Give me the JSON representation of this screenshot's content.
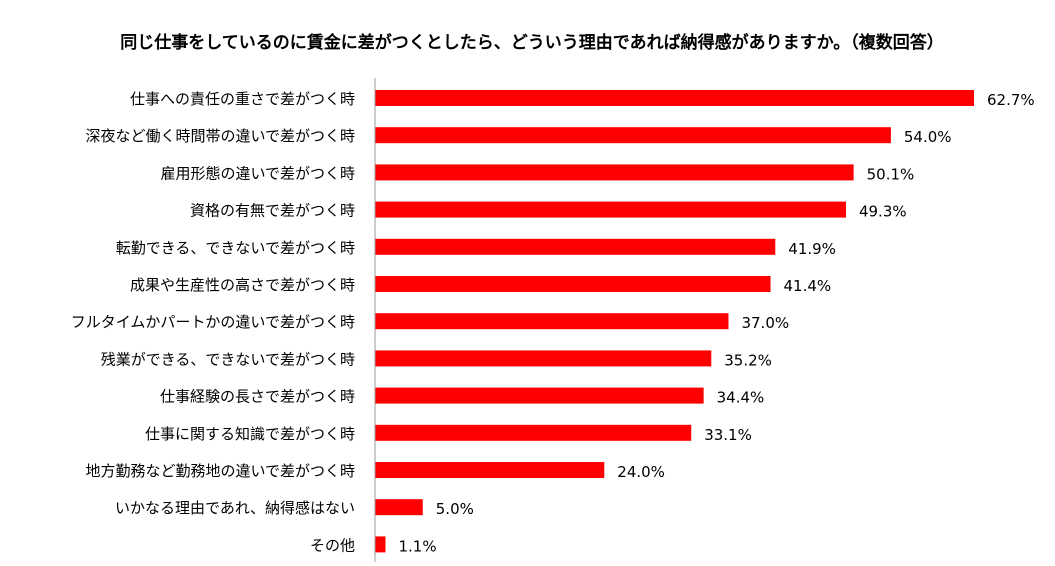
{
  "chart_data": {
    "type": "bar",
    "orientation": "horizontal",
    "title": "同じ仕事をしているのに賃金に差がつくとしたら、どういう理由であれば納得感がありますか。（複数回答）",
    "categories": [
      "仕事への責任の重さで差がつく時",
      "深夜など働く時間帯の違いで差がつく時",
      "雇用形態の違いで差がつく時",
      "資格の有無で差がつく時",
      "転勤できる、できないで差がつく時",
      "成果や生産性の高さで差がつく時",
      "フルタイムかパートかの違いで差がつく時",
      "残業ができる、できないで差がつく時",
      "仕事経験の長さで差がつく時",
      "仕事に関する知識で差がつく時",
      "地方勤務など勤務地の違いで差がつく時",
      "いかなる理由であれ、納得感はない",
      "その他"
    ],
    "values": [
      62.7,
      54.0,
      50.1,
      49.3,
      41.9,
      41.4,
      37.0,
      35.2,
      34.4,
      33.1,
      24.0,
      5.0,
      1.1
    ],
    "value_labels": [
      "62.7%",
      "54.0%",
      "50.1%",
      "49.3%",
      "41.9%",
      "41.4%",
      "37.0%",
      "35.2%",
      "34.4%",
      "33.1%",
      "24.0%",
      "5.0%",
      "1.1%"
    ],
    "xlim": [
      0,
      65
    ],
    "grid": false,
    "legend": "none",
    "bar_color": "#ff0000",
    "axis_color": "#9a9a9a"
  }
}
